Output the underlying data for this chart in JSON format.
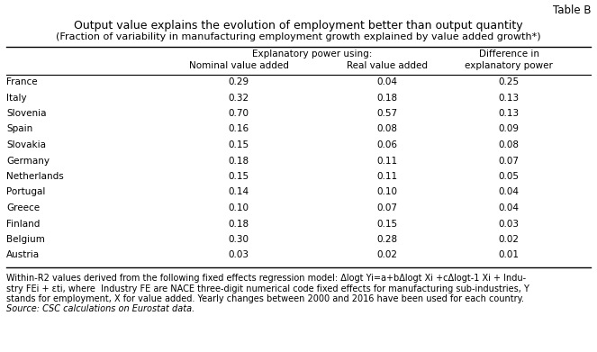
{
  "table_label": "Table B",
  "title": "Output value explains the evolution of employment better than output quantity",
  "subtitle": "(Fraction of variability in manufacturing employment growth explained by value added growth*)",
  "countries": [
    "France",
    "Italy",
    "Slovenia",
    "Spain",
    "Slovakia",
    "Germany",
    "Netherlands",
    "Portugal",
    "Greece",
    "Finland",
    "Belgium",
    "Austria"
  ],
  "nominal": [
    0.29,
    0.32,
    0.7,
    0.16,
    0.15,
    0.18,
    0.15,
    0.14,
    0.1,
    0.18,
    0.3,
    0.03
  ],
  "real": [
    0.04,
    0.18,
    0.57,
    0.08,
    0.06,
    0.11,
    0.11,
    0.1,
    0.07,
    0.15,
    0.28,
    0.02
  ],
  "difference": [
    0.25,
    0.13,
    0.13,
    0.09,
    0.08,
    0.07,
    0.05,
    0.04,
    0.04,
    0.03,
    0.02,
    0.01
  ],
  "footnote_line1": "Within-R2 values derived from the following fixed effects regression model: Δlogt Yi=a+bΔlogt Xi +cΔlogt-1 Xi + Indu-",
  "footnote_line2": "stry FEi + εti, where  Industry FE are NACE three-digit numerical code fixed effects for manufacturing sub-industries, Y",
  "footnote_line3": "stands for employment, X for value added. Yearly changes between 2000 and 2016 have been used for each country.",
  "footnote_source": "Source: CSC calculations on Eurostat data.",
  "bg_color": "#ffffff",
  "title_fs": 9,
  "subtitle_fs": 8,
  "header_fs": 7.5,
  "data_fs": 7.5,
  "footnote_fs": 7.0,
  "tablelabel_fs": 8.5
}
